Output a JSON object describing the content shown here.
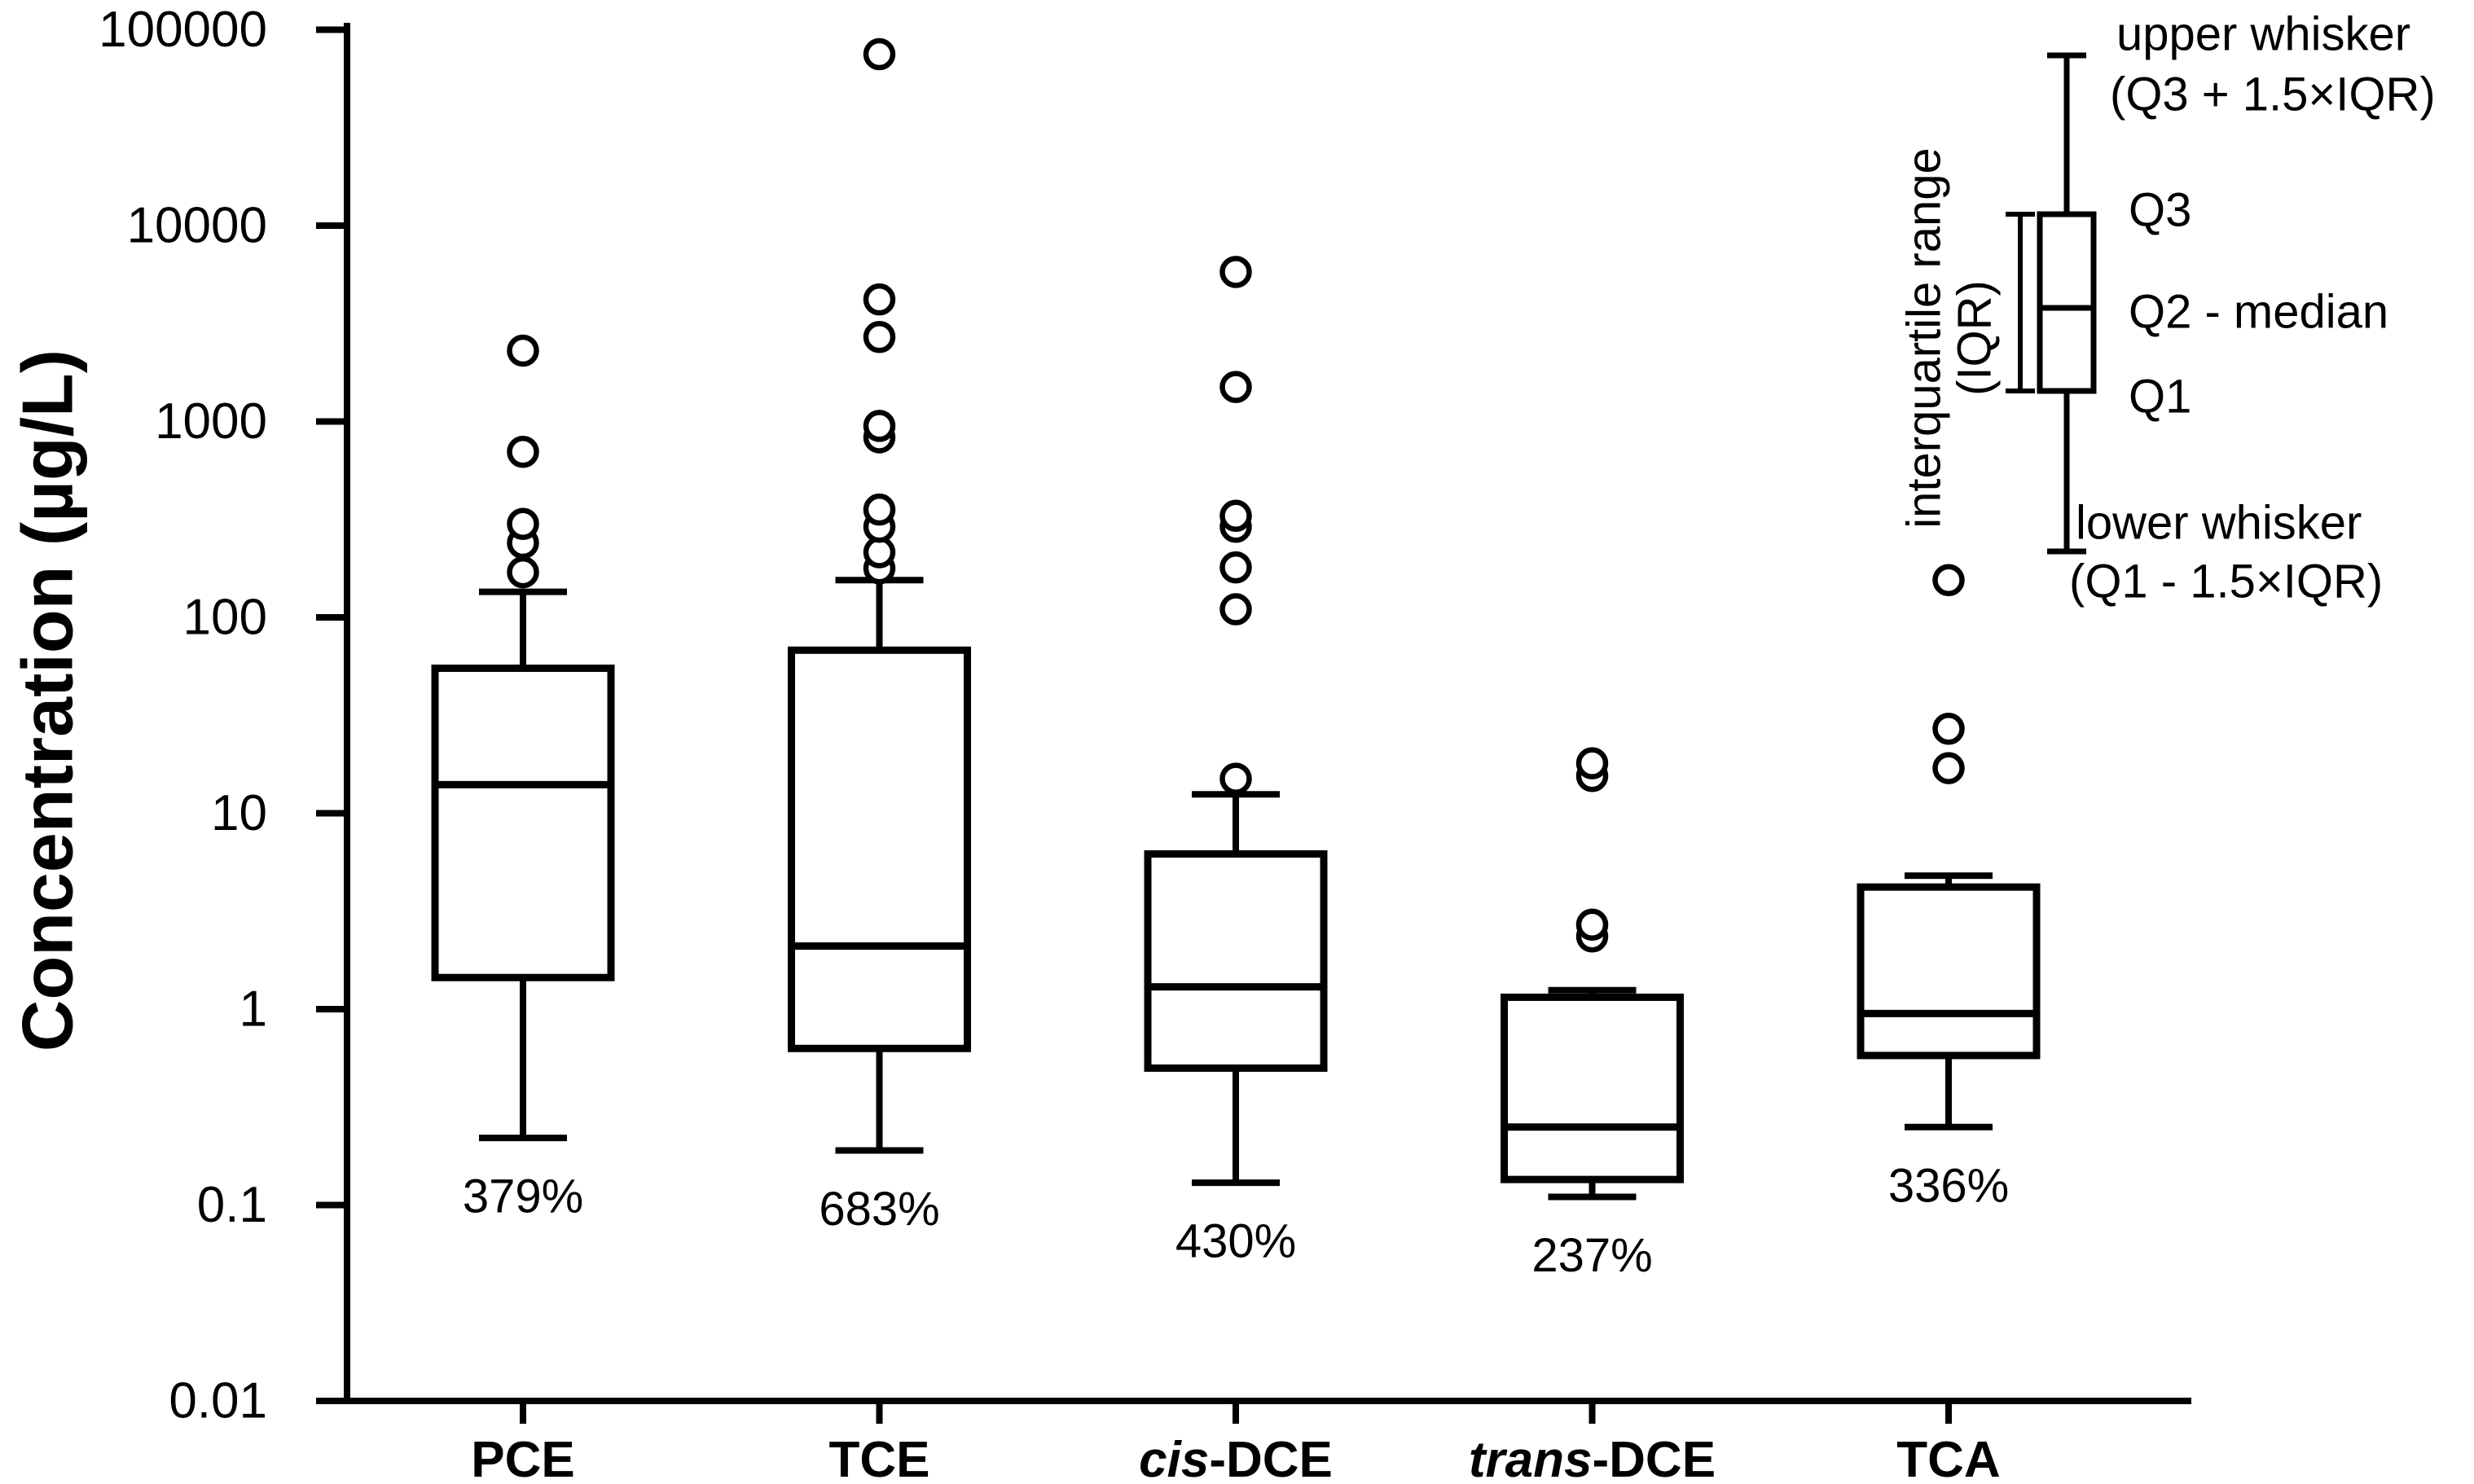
{
  "chart_data": {
    "type": "box",
    "title": "",
    "ylabel": "Concentration (µg/L)",
    "xlabel": "",
    "yscale": "log",
    "ylim": [
      0.01,
      100000
    ],
    "grid": false,
    "ink_color": "#000000",
    "background_color": "#ffffff",
    "y_tick_labels": [
      "100000",
      "10000",
      "1000",
      "100",
      "10",
      "1",
      "0.1",
      "0.01"
    ],
    "y_tick_values": [
      100000,
      10000,
      1000,
      100,
      10,
      1,
      0.1,
      0.01
    ],
    "series": [
      {
        "category": "PCE",
        "label_parts": [
          {
            "text": "PCE",
            "italic": false
          }
        ],
        "cv_percent": "379%",
        "q1": 1.45,
        "median": 14,
        "q3": 55,
        "whisker_low": 0.22,
        "whisker_high": 135,
        "outliers": [
          170,
          240,
          300,
          700,
          2300
        ]
      },
      {
        "category": "TCE",
        "label_parts": [
          {
            "text": "TCE",
            "italic": false
          }
        ],
        "cv_percent": "683%",
        "q1": 0.63,
        "median": 2.1,
        "q3": 68,
        "whisker_low": 0.19,
        "whisker_high": 155,
        "outliers": [
          178,
          215,
          290,
          355,
          830,
          950,
          2700,
          4200,
          75000
        ]
      },
      {
        "category": "cis-DCE",
        "label_parts": [
          {
            "text": "cis",
            "italic": true
          },
          {
            "text": "-DCE",
            "italic": false
          }
        ],
        "cv_percent": "430%",
        "q1": 0.5,
        "median": 1.3,
        "q3": 6.2,
        "whisker_low": 0.13,
        "whisker_high": 12.5,
        "outliers": [
          15,
          110,
          180,
          290,
          330,
          1500,
          5800
        ]
      },
      {
        "category": "trans-DCE",
        "label_parts": [
          {
            "text": "trans",
            "italic": true
          },
          {
            "text": "-DCE",
            "italic": false
          }
        ],
        "cv_percent": "237%",
        "q1": 0.135,
        "median": 0.25,
        "q3": 1.15,
        "whisker_low": 0.11,
        "whisker_high": 1.25,
        "outliers": [
          2.35,
          2.7,
          15.5,
          18
        ]
      },
      {
        "category": "TCA",
        "label_parts": [
          {
            "text": "TCA",
            "italic": false
          }
        ],
        "cv_percent": "336%",
        "q1": 0.58,
        "median": 0.95,
        "q3": 4.2,
        "whisker_low": 0.25,
        "whisker_high": 4.8,
        "outliers": [
          17,
          27,
          155
        ]
      }
    ],
    "legend": {
      "position": "top-right",
      "upper_whisker_line1": "upper whisker",
      "upper_whisker_line2": "(Q3 + 1.5×IQR)",
      "q3_label": "Q3",
      "q2_label": "Q2 - median",
      "q1_label": "Q1",
      "lower_whisker_line1": "lower whisker",
      "lower_whisker_line2": "(Q1 - 1.5×IQR)",
      "iqr_line1": "interquartile range",
      "iqr_line2": "(IQR)"
    }
  }
}
